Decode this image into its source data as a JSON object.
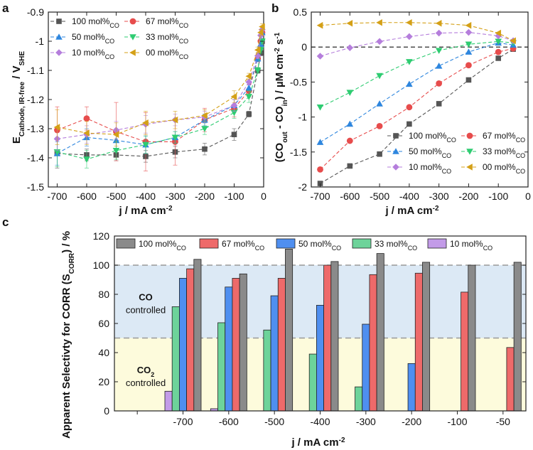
{
  "figure": {
    "panel_labels": [
      "a",
      "b",
      "c"
    ]
  },
  "chart_data": [
    {
      "id": "a",
      "type": "scatter",
      "panel_label": "a",
      "xlabel": "j / mA cm-2",
      "ylabel": "E Cathode, IR-free / V SHE",
      "xlim": [
        -730,
        0
      ],
      "ylim": [
        -1.5,
        -0.9
      ],
      "x_ticks": [
        -700,
        -600,
        -500,
        -400,
        -300,
        -200,
        -100,
        0
      ],
      "x_tick_labels": [
        "-700",
        "-600",
        "-500",
        "-400",
        "-300",
        "-200",
        "-100",
        "0"
      ],
      "y_ticks": [
        -1.5,
        -1.4,
        -1.3,
        -1.2,
        -1.1,
        -1.0,
        -0.9
      ],
      "y_tick_labels": [
        "-1.5",
        "-1.4",
        "-1.3",
        "-1.2",
        "-1.1",
        "-1",
        "-0.9"
      ],
      "legend_position": "top-left",
      "legend_columns": 2,
      "series": [
        {
          "name": "100 mol%CO",
          "label_main": "100 mol%",
          "label_sub": "CO",
          "color": "#555555",
          "marker": "square",
          "x": [
            -700,
            -600,
            -500,
            -400,
            -300,
            -200,
            -100,
            -50,
            -20,
            -10,
            -5
          ],
          "y": [
            -1.385,
            -1.39,
            -1.39,
            -1.395,
            -1.38,
            -1.37,
            -1.32,
            -1.25,
            -1.1,
            -1.04,
            -1.0
          ],
          "err": [
            0.05,
            0.02,
            0.02,
            0.02,
            0.02,
            0.02,
            0.02,
            0.01,
            0.01,
            0.01,
            0.01
          ]
        },
        {
          "name": "67 mol%CO",
          "label_main": "67 mol%",
          "label_sub": "CO",
          "color": "#e74c4c",
          "marker": "circle",
          "x": [
            -700,
            -600,
            -500,
            -400,
            -300,
            -200,
            -100,
            -50,
            -20,
            -10,
            -5
          ],
          "y": [
            -1.305,
            -1.265,
            -1.31,
            -1.345,
            -1.345,
            -1.27,
            -1.23,
            -1.17,
            -1.06,
            -1.0,
            -0.97
          ],
          "err": [
            0.08,
            0.04,
            0.1,
            0.1,
            0.08,
            0.04,
            0.03,
            0.02,
            0.01,
            0.01,
            0.01
          ]
        },
        {
          "name": "50 mol%CO",
          "label_main": "50 mol%",
          "label_sub": "CO",
          "color": "#2e86de",
          "marker": "triangle-up",
          "x": [
            -700,
            -600,
            -500,
            -400,
            -300,
            -200,
            -100,
            -50,
            -20,
            -10,
            -5
          ],
          "y": [
            -1.385,
            -1.33,
            -1.34,
            -1.355,
            -1.33,
            -1.27,
            -1.22,
            -1.16,
            -1.06,
            -1.01,
            -0.97
          ],
          "err": [
            0.04,
            0.03,
            0.03,
            0.03,
            0.02,
            0.02,
            0.02,
            0.01,
            0.01,
            0.01,
            0.01
          ]
        },
        {
          "name": "33 mol%CO",
          "label_main": "33 mol%",
          "label_sub": "CO",
          "color": "#2ecc71",
          "marker": "triangle-down",
          "x": [
            -700,
            -600,
            -500,
            -400,
            -300,
            -200,
            -100,
            -50,
            -20,
            -10,
            -5
          ],
          "y": [
            -1.38,
            -1.405,
            -1.375,
            -1.355,
            -1.33,
            -1.3,
            -1.245,
            -1.19,
            -1.1,
            -1.03,
            -1.0
          ],
          "err": [
            0.05,
            0.03,
            0.03,
            0.03,
            0.02,
            0.02,
            0.02,
            0.02,
            0.01,
            0.01,
            0.01
          ]
        },
        {
          "name": "10 mol%CO",
          "label_main": "10 mol%",
          "label_sub": "CO",
          "color": "#b57edc",
          "marker": "diamond",
          "x": [
            -700,
            -600,
            -500,
            -400,
            -300,
            -200,
            -100,
            -50,
            -20,
            -10,
            -5
          ],
          "y": [
            -1.335,
            -1.32,
            -1.305,
            -1.285,
            -1.27,
            -1.26,
            -1.22,
            -1.14,
            -1.05,
            -0.98,
            -0.96
          ],
          "err": [
            0.04,
            0.03,
            0.03,
            0.03,
            0.02,
            0.02,
            0.02,
            0.01,
            0.01,
            0.01,
            0.01
          ]
        },
        {
          "name": "00 mol%CO",
          "label_main": "00 mol%",
          "label_sub": "CO",
          "color": "#d4a017",
          "marker": "triangle-left",
          "x": [
            -700,
            -600,
            -500,
            -400,
            -300,
            -200,
            -100,
            -50,
            -20,
            -10,
            -5
          ],
          "y": [
            -1.295,
            -1.315,
            -1.32,
            -1.28,
            -1.27,
            -1.255,
            -1.19,
            -1.12,
            -1.03,
            -0.97,
            -0.95
          ],
          "err": [
            0.06,
            0.04,
            0.04,
            0.04,
            0.03,
            0.02,
            0.02,
            0.01,
            0.01,
            0.01,
            0.01
          ]
        }
      ]
    },
    {
      "id": "b",
      "type": "line",
      "panel_label": "b",
      "xlabel": "j / mA cm-2",
      "ylabel": "(CO out - CO in) / µM cm-2 s-1",
      "xlim": [
        -730,
        0
      ],
      "ylim": [
        -2.0,
        0.5
      ],
      "x_ticks": [
        -700,
        -600,
        -500,
        -400,
        -300,
        -200,
        -100,
        0
      ],
      "x_tick_labels": [
        "-700",
        "-600",
        "-500",
        "-400",
        "-300",
        "-200",
        "-100",
        "0"
      ],
      "y_ticks": [
        -2.0,
        -1.5,
        -1.0,
        -0.5,
        0.0,
        0.5
      ],
      "y_tick_labels": [
        "-2",
        "-1.5",
        "-1",
        "-0.5",
        "0",
        "0.5"
      ],
      "zero_line": 0,
      "legend_position": "bottom-right",
      "legend_columns": 2,
      "series": [
        {
          "name": "100 mol%CO",
          "label_main": "100 mol%",
          "label_sub": "CO",
          "color": "#555555",
          "marker": "square",
          "x": [
            -700,
            -600,
            -500,
            -400,
            -300,
            -200,
            -100,
            -50
          ],
          "y": [
            -1.95,
            -1.7,
            -1.53,
            -1.1,
            -0.81,
            -0.47,
            -0.16,
            -0.03
          ]
        },
        {
          "name": "67 mol%CO",
          "label_main": "67 mol%",
          "label_sub": "CO",
          "color": "#e74c4c",
          "marker": "circle",
          "x": [
            -700,
            -600,
            -500,
            -400,
            -300,
            -200,
            -100,
            -50
          ],
          "y": [
            -1.75,
            -1.34,
            -1.13,
            -0.86,
            -0.52,
            -0.26,
            -0.07,
            -0.02
          ]
        },
        {
          "name": "50 mol%CO",
          "label_main": "50 mol%",
          "label_sub": "CO",
          "color": "#2e86de",
          "marker": "triangle-up",
          "x": [
            -700,
            -600,
            -500,
            -400,
            -300,
            -200,
            -100,
            -50
          ],
          "y": [
            -1.36,
            -1.1,
            -0.81,
            -0.53,
            -0.27,
            -0.07,
            0.06,
            0.03
          ]
        },
        {
          "name": "33 mol%CO",
          "label_main": "33 mol%",
          "label_sub": "CO",
          "color": "#2ecc71",
          "marker": "triangle-down",
          "x": [
            -700,
            -600,
            -500,
            -400,
            -300,
            -200,
            -100,
            -50
          ],
          "y": [
            -0.86,
            -0.65,
            -0.41,
            -0.21,
            -0.05,
            0.04,
            0.08,
            0.06
          ]
        },
        {
          "name": "10 mol%CO",
          "label_main": "10 mol%",
          "label_sub": "CO",
          "color": "#b57edc",
          "marker": "diamond",
          "x": [
            -700,
            -600,
            -500,
            -400,
            -300,
            -200,
            -100,
            -50
          ],
          "y": [
            -0.13,
            -0.01,
            0.08,
            0.15,
            0.2,
            0.21,
            0.16,
            0.09
          ]
        },
        {
          "name": "00 mol%CO",
          "label_main": "00 mol%",
          "label_sub": "CO",
          "color": "#d4a017",
          "marker": "triangle-left",
          "x": [
            -700,
            -600,
            -500,
            -400,
            -300,
            -200,
            -100,
            -50
          ],
          "y": [
            0.31,
            0.34,
            0.35,
            0.35,
            0.34,
            0.31,
            0.2,
            0.09
          ]
        }
      ]
    },
    {
      "id": "c",
      "type": "bar",
      "panel_label": "c",
      "xlabel": "j / mA cm-2",
      "ylabel": "Apparent Selectivty for CORR (S CORR) / %",
      "categories": [
        "",
        "-700",
        "-600",
        "-500",
        "-400",
        "-300",
        "-200",
        "-100",
        "-50"
      ],
      "ylim": [
        0,
        120
      ],
      "y_ticks": [
        0,
        20,
        40,
        60,
        80,
        100,
        120
      ],
      "y_tick_labels": [
        "0",
        "20",
        "40",
        "60",
        "80",
        "100",
        "120"
      ],
      "threshold_lines": [
        50,
        100
      ],
      "regions": [
        {
          "from": 50,
          "to": 100,
          "label_main": "CO",
          "label_sub": "",
          "label_line2": "controlled",
          "color": "#dce9f5"
        },
        {
          "from": 0,
          "to": 50,
          "label_main": "CO",
          "label_sub": "2",
          "label_line2": "controlled",
          "color": "#fdfbdc"
        }
      ],
      "legend_position": "top",
      "series": [
        {
          "name": "10 mol%CO",
          "label_main": "10 mol%",
          "label_sub": "CO",
          "color": "#c39be8",
          "values": [
            null,
            13.5,
            1.5,
            null,
            null,
            null,
            null,
            null,
            null
          ]
        },
        {
          "name": "33 mol%CO",
          "label_main": "33 mol%",
          "label_sub": "CO",
          "color": "#6dd39a",
          "values": [
            null,
            71.5,
            60.5,
            55.5,
            39,
            16.5,
            null,
            null,
            null
          ]
        },
        {
          "name": "50 mol%CO",
          "label_main": "50 mol%",
          "label_sub": "CO",
          "color": "#4f8ff0",
          "values": [
            null,
            91,
            85,
            79,
            72.5,
            59.5,
            32.5,
            null,
            null
          ]
        },
        {
          "name": "67 mol%CO",
          "label_main": "67 mol%",
          "label_sub": "CO",
          "color": "#ee6a6a",
          "values": [
            null,
            97.5,
            91,
            91,
            100,
            93.5,
            94.5,
            81.5,
            43.5
          ]
        },
        {
          "name": "100 mol%CO",
          "label_main": "100 mol%",
          "label_sub": "CO",
          "color": "#8a8a8a",
          "values": [
            null,
            104,
            94,
            111,
            102.5,
            108,
            102,
            100,
            102
          ]
        }
      ],
      "legend_order": [
        4,
        3,
        2,
        1,
        0
      ]
    }
  ]
}
